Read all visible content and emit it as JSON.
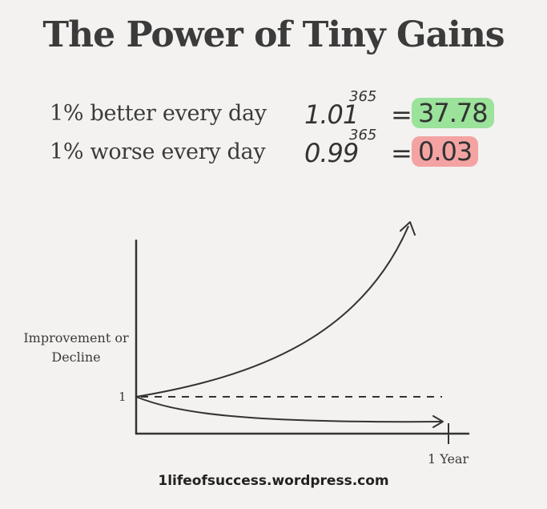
{
  "title": "The Power of Tiny Gains",
  "rows": [
    {
      "label": "1% better every day",
      "base": "1.01",
      "exponent": "365",
      "equals": "=",
      "result": "37.78",
      "result_color": "#9be29b"
    },
    {
      "label": "1% worse every day",
      "base": "0.99",
      "exponent": "365",
      "equals": "=",
      "result": "0.03",
      "result_color": "#f4a3a3"
    }
  ],
  "source": "1lifeofsuccess.wordpress.com",
  "chart_data": {
    "type": "line",
    "ylabel": "Improvement or Decline",
    "y_tick_labels": [
      "1"
    ],
    "x_tick_labels": [
      "1 Year"
    ],
    "x": [
      0,
      365
    ],
    "series": [
      {
        "values_start": 1,
        "values_end": 37.78
      },
      {
        "values_start": 1,
        "values_end": 0.03
      },
      {
        "values_start": 1,
        "values_end": 1
      }
    ],
    "grid": false,
    "line_color": "#333333"
  }
}
